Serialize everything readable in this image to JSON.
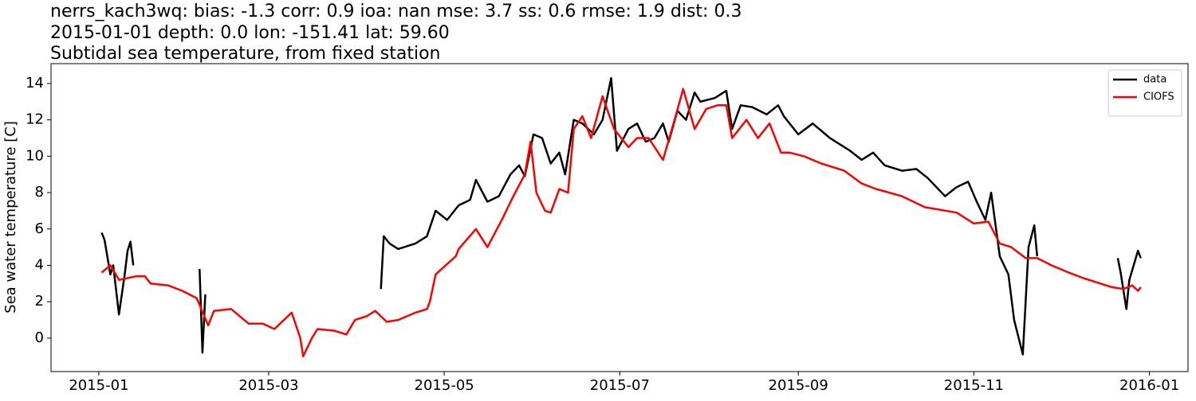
{
  "chart_data": {
    "type": "line",
    "title": [
      "nerrs_kach3wq: bias: -1.3  corr: 0.9  ioa: nan  mse: 3.7  ss: 0.6  rmse: 1.9  dist: 0.3",
      "2015-01-01 depth: 0.0 lon: -151.41 lat: 59.60",
      "Subtidal sea temperature, from fixed station"
    ],
    "y_label": "Sea water temperature [C]",
    "xlim": [
      -16.6,
      378.4
    ],
    "xticks": [
      {
        "value": 0,
        "label": "2015-01"
      },
      {
        "value": 59,
        "label": "2015-03"
      },
      {
        "value": 120,
        "label": "2015-05"
      },
      {
        "value": 181,
        "label": "2015-07"
      },
      {
        "value": 243,
        "label": "2015-09"
      },
      {
        "value": 304,
        "label": "2015-11"
      },
      {
        "value": 365,
        "label": "2016-01"
      }
    ],
    "ylim": [
      -1.84,
      15.09
    ],
    "yticks": [
      0,
      2,
      4,
      6,
      8,
      10,
      12,
      14
    ],
    "grid": false,
    "legend": "upper-right",
    "series": [
      {
        "name": "data",
        "color": "#000000",
        "x": [
          1,
          2,
          4,
          5,
          7,
          9,
          10,
          11,
          12,
          24,
          35,
          36,
          37,
          67,
          98,
          99,
          101,
          104,
          110,
          114,
          117,
          121,
          125,
          129,
          131,
          135,
          139,
          143,
          146,
          148,
          151,
          154,
          157,
          160,
          162,
          165,
          168,
          172,
          175,
          178,
          180,
          184,
          187,
          190,
          193,
          196,
          198,
          201,
          204,
          207,
          209,
          214,
          218,
          220,
          223,
          227,
          232,
          236,
          238,
          243,
          248,
          254,
          256,
          261,
          265,
          269,
          273,
          279,
          284,
          288,
          294,
          298,
          302,
          305,
          308,
          310,
          313,
          316,
          318,
          321,
          323,
          325,
          326,
          340,
          354,
          355,
          357,
          358,
          361,
          362
        ],
        "values": [
          5.8,
          5.4,
          3.5,
          4.0,
          1.3,
          3.5,
          4.8,
          5.3,
          4.0,
          null,
          3.8,
          -0.8,
          2.4,
          null,
          2.7,
          5.6,
          5.2,
          4.9,
          5.2,
          5.6,
          7.0,
          6.5,
          7.3,
          7.6,
          8.7,
          7.5,
          7.8,
          9.0,
          9.5,
          8.9,
          11.2,
          11.0,
          9.6,
          10.2,
          9.0,
          12.0,
          11.8,
          11.2,
          12.0,
          14.3,
          10.3,
          11.5,
          11.8,
          10.8,
          11.0,
          11.8,
          10.8,
          12.5,
          12.0,
          13.5,
          13.0,
          13.2,
          13.6,
          11.5,
          12.8,
          12.7,
          12.3,
          12.8,
          12.2,
          11.2,
          11.8,
          11.0,
          10.8,
          10.3,
          9.8,
          10.2,
          9.5,
          9.2,
          9.3,
          8.8,
          7.8,
          8.3,
          8.6,
          7.5,
          6.5,
          8.0,
          4.5,
          3.5,
          1.0,
          -0.9,
          5.0,
          6.2,
          4.5,
          null,
          4.4,
          3.6,
          1.6,
          3.2,
          4.8,
          4.4
        ]
      },
      {
        "name": "CIOFS",
        "color": "#ff0000",
        "x": [
          1,
          4,
          7,
          13,
          16,
          18,
          24,
          29,
          34,
          38,
          40,
          46,
          52,
          57,
          61,
          67,
          70,
          71,
          74,
          76,
          82,
          86,
          89,
          93,
          96,
          100,
          104,
          110,
          114,
          115,
          117,
          124,
          125,
          131,
          135,
          140,
          144,
          148,
          150,
          152,
          155,
          157,
          160,
          163,
          165,
          168,
          171,
          175,
          179,
          184,
          187,
          191,
          196,
          200,
          203,
          207,
          211,
          215,
          218,
          220,
          225,
          229,
          233,
          237,
          240,
          245,
          251,
          259,
          265,
          270,
          279,
          287,
          298,
          304,
          309,
          313,
          317,
          322,
          326,
          331,
          337,
          342,
          348,
          352,
          356,
          359,
          361,
          362
        ],
        "values": [
          3.6,
          4.0,
          3.2,
          3.4,
          3.4,
          3.0,
          2.9,
          2.6,
          2.2,
          0.7,
          1.5,
          1.6,
          0.8,
          0.8,
          0.5,
          1.4,
          0,
          -1.0,
          0,
          0.5,
          0.4,
          0.2,
          1.0,
          1.2,
          1.5,
          0.9,
          1.0,
          1.4,
          1.6,
          2.0,
          3.5,
          4.5,
          4.9,
          6.0,
          5.0,
          6.5,
          7.8,
          9.0,
          10.8,
          8.0,
          7.0,
          6.9,
          8.2,
          8.0,
          11.5,
          12.2,
          11.0,
          13.3,
          11.5,
          10.5,
          11.0,
          11.0,
          9.8,
          12.0,
          13.7,
          11.5,
          12.6,
          12.8,
          12.8,
          11.0,
          12.0,
          11.0,
          11.8,
          10.2,
          10.2,
          10.0,
          9.6,
          9.2,
          8.5,
          8.2,
          7.8,
          7.2,
          6.9,
          6.3,
          6.4,
          5.2,
          5.0,
          4.4,
          4.4,
          4.0,
          3.6,
          3.3,
          3.0,
          2.8,
          2.7,
          2.9,
          2.6,
          2.8
        ]
      }
    ]
  }
}
